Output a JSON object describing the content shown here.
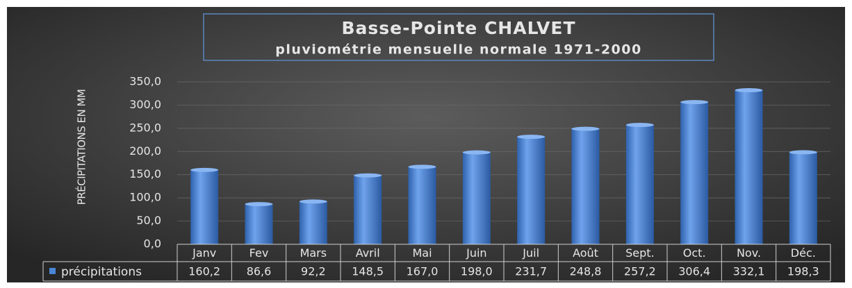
{
  "chart_data": {
    "type": "bar",
    "title": "Basse-Pointe CHALVET",
    "subtitle": "pluviométrie mensuelle normale 1971-2000",
    "y_label": "PRÉCIPITATIONS EN MM",
    "categories": [
      "Janv",
      "Fev",
      "Mars",
      "Avril",
      "Mai",
      "Juin",
      "Juil",
      "Août",
      "Sept.",
      "Oct.",
      "Nov.",
      "Déc."
    ],
    "series": [
      {
        "name": "précipitations",
        "color": "#4a86d6",
        "values": [
          160.2,
          86.6,
          92.2,
          148.5,
          167.0,
          198.0,
          231.7,
          248.8,
          257.2,
          306.4,
          332.1,
          198.3
        ],
        "value_labels": [
          "160,2",
          "86,6",
          "92,2",
          "148,5",
          "167,0",
          "198,0",
          "231,7",
          "248,8",
          "257,2",
          "306,4",
          "332,1",
          "198,3"
        ]
      }
    ],
    "ylim": [
      0,
      350
    ],
    "yticks": [
      {
        "value": 0,
        "label": "0,0"
      },
      {
        "value": 50,
        "label": "50,0"
      },
      {
        "value": 100,
        "label": "100,0"
      },
      {
        "value": 150,
        "label": "150,0"
      },
      {
        "value": 200,
        "label": "200,0"
      },
      {
        "value": 250,
        "label": "250,0"
      },
      {
        "value": 300,
        "label": "300,0"
      },
      {
        "value": 350,
        "label": "350,0"
      }
    ],
    "grid": true
  }
}
